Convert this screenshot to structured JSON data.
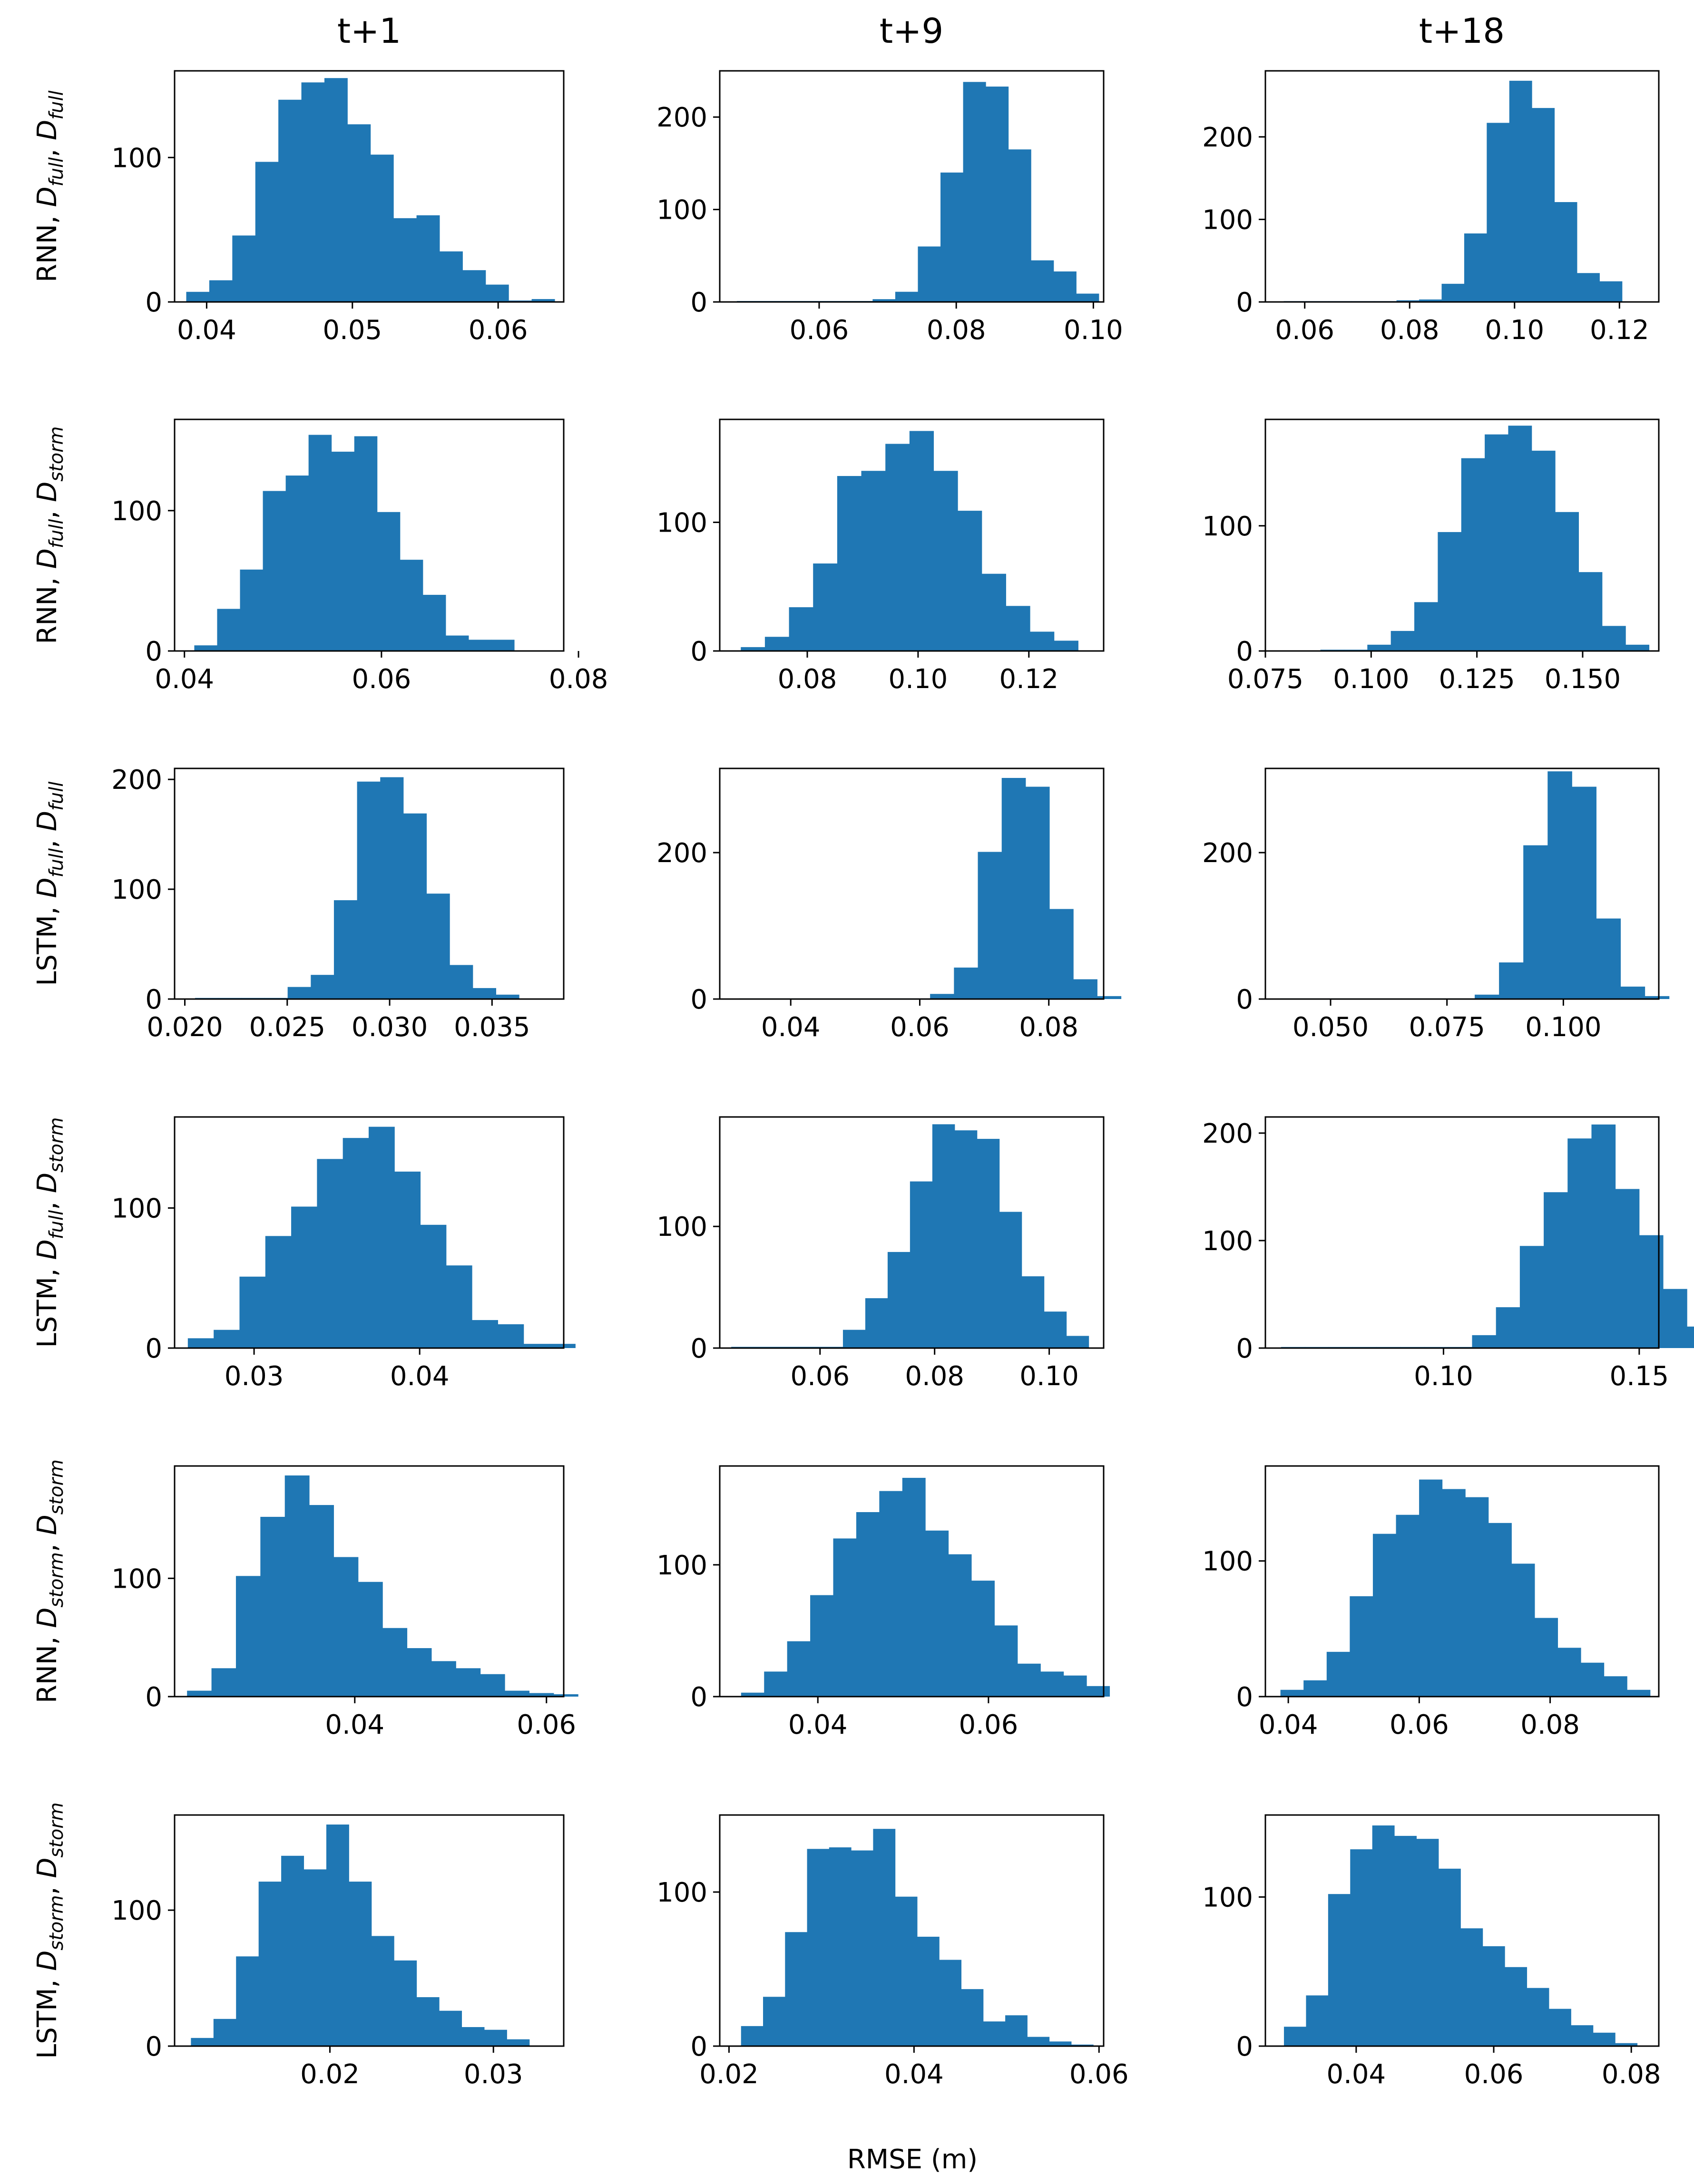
{
  "figure": {
    "column_titles": [
      "t+1",
      "t+9",
      "t+18"
    ],
    "row_labels": [
      {
        "model": "RNN",
        "sep": ", ",
        "d1": "full",
        "d2": "full"
      },
      {
        "model": "RNN",
        "sep": ", ",
        "d1": "full",
        "d2": "storm"
      },
      {
        "model": "LSTM",
        "sep": ", ",
        "d1": "full",
        "d2": "full"
      },
      {
        "model": "LSTM",
        "sep": ", ",
        "d1": "full",
        "d2": "storm"
      },
      {
        "model": "RNN",
        "sep": ", ",
        "d1": "storm",
        "d2": "storm"
      },
      {
        "model": "LSTM",
        "sep": ", ",
        "d1": "storm",
        "d2": "storm"
      }
    ],
    "italic_D": "D",
    "x_label": "RMSE (m)",
    "bar_color": "#1f77b4"
  },
  "chart_data": [
    {
      "type": "bar",
      "title": "t+1",
      "ylabel": "RNN, D_full, D_full",
      "xlim": [
        0.0378,
        0.0645
      ],
      "ylim": [
        0,
        160
      ],
      "bin_start": 0.0386,
      "bin_width": 0.00158,
      "values": [
        7,
        15,
        46,
        97,
        140,
        152,
        155,
        123,
        102,
        58,
        60,
        35,
        22,
        12,
        1,
        2
      ],
      "xticks": [
        0.04,
        0.05,
        0.06
      ],
      "xtick_labels": [
        "0.04",
        "0.05",
        "0.06"
      ],
      "yticks": [
        0,
        100
      ],
      "ytick_labels": [
        "0",
        "100"
      ]
    },
    {
      "type": "bar",
      "title": "t+9",
      "ylabel": "RNN, D_full, D_full",
      "xlim": [
        0.0455,
        0.1015
      ],
      "ylim": [
        0,
        250
      ],
      "bin_start": 0.048,
      "bin_width": 0.0033,
      "values": [
        1,
        1,
        1,
        1,
        1,
        1,
        3,
        11,
        60,
        140,
        238,
        233,
        165,
        45,
        33,
        9
      ],
      "xticks": [
        0.06,
        0.08,
        0.1
      ],
      "xtick_labels": [
        "0.06",
        "0.08",
        "0.10"
      ],
      "yticks": [
        0,
        100,
        200
      ],
      "ytick_labels": [
        "0",
        "100",
        "200"
      ]
    },
    {
      "type": "bar",
      "title": "t+18",
      "ylabel": "RNN, D_full, D_full",
      "xlim": [
        0.0525,
        0.1275
      ],
      "ylim": [
        0,
        280
      ],
      "bin_start": 0.056,
      "bin_width": 0.0043,
      "values": [
        1,
        1,
        1,
        1,
        1,
        2,
        3,
        22,
        83,
        217,
        268,
        235,
        121,
        35,
        25,
        0
      ],
      "xticks": [
        0.06,
        0.08,
        0.1,
        0.12
      ],
      "xtick_labels": [
        "0.06",
        "0.08",
        "0.10",
        "0.12"
      ],
      "yticks": [
        0,
        100,
        200
      ],
      "ytick_labels": [
        "0",
        "100",
        "200"
      ]
    },
    {
      "type": "bar",
      "title": "t+1",
      "ylabel": "RNN, D_full, D_storm",
      "xlim": [
        0.039,
        0.0785
      ],
      "ylim": [
        0,
        165
      ],
      "bin_start": 0.041,
      "bin_width": 0.00232,
      "values": [
        4,
        30,
        58,
        114,
        125,
        154,
        142,
        153,
        99,
        65,
        40,
        11,
        8,
        8
      ],
      "xticks": [
        0.04,
        0.06,
        0.08
      ],
      "xtick_labels": [
        "0.04",
        "0.06",
        "0.08"
      ],
      "yticks": [
        0,
        100
      ],
      "ytick_labels": [
        "0",
        "100"
      ]
    },
    {
      "type": "bar",
      "title": "t+9",
      "ylabel": "RNN, D_full, D_storm",
      "xlim": [
        0.0642,
        0.1335
      ],
      "ylim": [
        0,
        180
      ],
      "bin_start": 0.068,
      "bin_width": 0.00435,
      "values": [
        3,
        11,
        34,
        68,
        136,
        140,
        161,
        171,
        140,
        109,
        60,
        35,
        15,
        8
      ],
      "xticks": [
        0.08,
        0.1,
        0.12
      ],
      "xtick_labels": [
        "0.08",
        "0.10",
        "0.12"
      ],
      "yticks": [
        0,
        100
      ],
      "ytick_labels": [
        "0",
        "100"
      ]
    },
    {
      "type": "bar",
      "title": "t+18",
      "ylabel": "RNN, D_full, D_storm",
      "xlim": [
        0.075,
        0.168
      ],
      "ylim": [
        0,
        185
      ],
      "bin_start": 0.088,
      "bin_width": 0.00555,
      "values": [
        1,
        1,
        5,
        16,
        39,
        95,
        154,
        173,
        180,
        160,
        111,
        63,
        20,
        5
      ],
      "xticks": [
        0.075,
        0.1,
        0.125,
        0.15
      ],
      "xtick_labels": [
        "0.075",
        "0.100",
        "0.125",
        "0.150"
      ],
      "yticks": [
        0,
        100
      ],
      "ytick_labels": [
        "0",
        "100"
      ]
    },
    {
      "type": "bar",
      "title": "t+1",
      "ylabel": "LSTM, D_full, D_full",
      "xlim": [
        0.0195,
        0.0385
      ],
      "ylim": [
        0,
        210
      ],
      "bin_start": 0.0205,
      "bin_width": 0.00113,
      "values": [
        1,
        1,
        1,
        1,
        11,
        22,
        90,
        198,
        202,
        169,
        96,
        31,
        10,
        4
      ],
      "xticks": [
        0.02,
        0.025,
        0.03,
        0.035
      ],
      "xtick_labels": [
        "0.020",
        "0.025",
        "0.030",
        "0.035"
      ],
      "yticks": [
        0,
        100,
        200
      ],
      "ytick_labels": [
        "0",
        "100",
        "200"
      ]
    },
    {
      "type": "bar",
      "title": "t+9",
      "ylabel": "LSTM, D_full, D_full",
      "xlim": [
        0.029,
        0.0885
      ],
      "ylim": [
        0,
        315
      ],
      "bin_start": 0.032,
      "bin_width": 0.0037,
      "values": [
        1,
        1,
        1,
        1,
        1,
        1,
        1,
        1,
        7,
        43,
        201,
        302,
        290,
        123,
        27,
        4
      ],
      "xticks": [
        0.04,
        0.06,
        0.08
      ],
      "xtick_labels": [
        "0.04",
        "0.06",
        "0.08"
      ],
      "yticks": [
        0,
        200
      ],
      "ytick_labels": [
        "0",
        "200"
      ]
    },
    {
      "type": "bar",
      "title": "t+18",
      "ylabel": "LSTM, D_full, D_full",
      "xlim": [
        0.036,
        0.1205
      ],
      "ylim": [
        0,
        315
      ],
      "bin_start": 0.0392,
      "bin_width": 0.00522,
      "values": [
        1,
        1,
        1,
        1,
        1,
        1,
        1,
        1,
        6,
        50,
        210,
        311,
        290,
        110,
        17,
        4
      ],
      "xticks": [
        0.05,
        0.075,
        0.1
      ],
      "xtick_labels": [
        "0.050",
        "0.075",
        "0.100"
      ],
      "yticks": [
        0,
        200
      ],
      "ytick_labels": [
        "0",
        "200"
      ]
    },
    {
      "type": "bar",
      "title": "t+1",
      "ylabel": "LSTM, D_full, D_storm",
      "xlim": [
        0.0252,
        0.0487
      ],
      "ylim": [
        0,
        165
      ],
      "bin_start": 0.026,
      "bin_width": 0.00156,
      "values": [
        7,
        13,
        51,
        80,
        101,
        135,
        150,
        158,
        126,
        88,
        59,
        20,
        17,
        3,
        3
      ],
      "xticks": [
        0.03,
        0.04
      ],
      "xtick_labels": [
        "0.03",
        "0.04"
      ],
      "yticks": [
        0,
        100
      ],
      "ytick_labels": [
        "0",
        "100"
      ]
    },
    {
      "type": "bar",
      "title": "t+9",
      "ylabel": "LSTM, D_full, D_storm",
      "xlim": [
        0.0425,
        0.1095
      ],
      "ylim": [
        0,
        190
      ],
      "bin_start": 0.0445,
      "bin_width": 0.0039,
      "values": [
        1,
        1,
        1,
        1,
        1,
        15,
        41,
        79,
        137,
        184,
        179,
        172,
        112,
        59,
        30,
        10
      ],
      "xticks": [
        0.06,
        0.08,
        0.1
      ],
      "xtick_labels": [
        "0.06",
        "0.08",
        "0.10"
      ],
      "yticks": [
        0,
        100
      ],
      "ytick_labels": [
        "0",
        "100"
      ]
    },
    {
      "type": "bar",
      "title": "t+18",
      "ylabel": "LSTM, D_full, D_storm",
      "xlim": [
        0.0545,
        0.155
      ],
      "ylim": [
        0,
        215
      ],
      "bin_start": 0.0585,
      "bin_width": 0.0061,
      "values": [
        1,
        1,
        1,
        1,
        1,
        1,
        1,
        1,
        12,
        38,
        95,
        145,
        195,
        208,
        148,
        105,
        55,
        20,
        12
      ],
      "xticks": [
        0.1,
        0.15
      ],
      "xtick_labels": [
        "0.10",
        "0.15"
      ],
      "yticks": [
        0,
        100,
        200
      ],
      "ytick_labels": [
        "0",
        "100",
        "200"
      ]
    },
    {
      "type": "bar",
      "title": "t+1",
      "ylabel": "RNN, D_storm, D_storm",
      "xlim": [
        0.0212,
        0.0618
      ],
      "ylim": [
        0,
        195
      ],
      "bin_start": 0.0225,
      "bin_width": 0.00255,
      "values": [
        5,
        24,
        102,
        152,
        187,
        162,
        118,
        97,
        58,
        41,
        30,
        24,
        19,
        5,
        3,
        2
      ],
      "xticks": [
        0.04,
        0.06
      ],
      "xtick_labels": [
        "0.04",
        "0.06"
      ],
      "yticks": [
        0,
        100
      ],
      "ytick_labels": [
        "0",
        "100"
      ]
    },
    {
      "type": "bar",
      "title": "t+9",
      "ylabel": "RNN, D_storm, D_storm",
      "xlim": [
        0.0285,
        0.0735
      ],
      "ylim": [
        0,
        175
      ],
      "bin_start": 0.031,
      "bin_width": 0.0027,
      "values": [
        3,
        19,
        42,
        77,
        120,
        140,
        156,
        166,
        126,
        108,
        88,
        54,
        25,
        19,
        16,
        8
      ],
      "xticks": [
        0.04,
        0.06
      ],
      "xtick_labels": [
        "0.04",
        "0.06"
      ],
      "yticks": [
        0,
        100
      ],
      "ytick_labels": [
        "0",
        "100"
      ]
    },
    {
      "type": "bar",
      "title": "t+18",
      "ylabel": "RNN, D_storm, D_storm",
      "xlim": [
        0.0365,
        0.0966
      ],
      "ylim": [
        0,
        170
      ],
      "bin_start": 0.0388,
      "bin_width": 0.00353,
      "values": [
        5,
        12,
        33,
        74,
        120,
        134,
        160,
        153,
        147,
        128,
        98,
        58,
        36,
        25,
        15,
        5
      ],
      "xticks": [
        0.04,
        0.06,
        0.08
      ],
      "xtick_labels": [
        "0.04",
        "0.06",
        "0.08"
      ],
      "yticks": [
        0,
        100
      ],
      "ytick_labels": [
        "0",
        "100"
      ]
    },
    {
      "type": "bar",
      "title": "t+1",
      "ylabel": "LSTM, D_storm, D_storm",
      "xlim": [
        0.0105,
        0.0343
      ],
      "ylim": [
        0,
        170
      ],
      "bin_start": 0.0115,
      "bin_width": 0.00138,
      "values": [
        6,
        20,
        66,
        121,
        140,
        130,
        163,
        121,
        81,
        63,
        36,
        26,
        14,
        12,
        5
      ],
      "xticks": [
        0.02,
        0.03
      ],
      "xtick_labels": [
        "0.02",
        "0.03"
      ],
      "yticks": [
        0,
        100
      ],
      "ytick_labels": [
        "0",
        "100"
      ]
    },
    {
      "type": "bar",
      "title": "t+9",
      "ylabel": "LSTM, D_storm, D_storm",
      "xlim": [
        0.019,
        0.0605
      ],
      "ylim": [
        0,
        150
      ],
      "bin_start": 0.0213,
      "bin_width": 0.00238,
      "values": [
        13,
        32,
        74,
        128,
        129,
        127,
        141,
        97,
        71,
        56,
        37,
        16,
        20,
        6,
        3,
        1
      ],
      "xticks": [
        0.02,
        0.04,
        0.06
      ],
      "xtick_labels": [
        "0.02",
        "0.04",
        "0.06"
      ],
      "yticks": [
        0,
        100
      ],
      "ytick_labels": [
        "0",
        "100"
      ]
    },
    {
      "type": "bar",
      "title": "t+18",
      "ylabel": "LSTM, D_storm, D_storm",
      "xlim": [
        0.0268,
        0.084
      ],
      "ylim": [
        0,
        155
      ],
      "bin_start": 0.0295,
      "bin_width": 0.00321,
      "values": [
        13,
        34,
        102,
        132,
        148,
        141,
        139,
        119,
        79,
        67,
        53,
        39,
        25,
        14,
        9,
        2
      ],
      "xticks": [
        0.04,
        0.06,
        0.08
      ],
      "xtick_labels": [
        "0.04",
        "0.06",
        "0.08"
      ],
      "yticks": [
        0,
        100
      ],
      "ytick_labels": [
        "0",
        "100"
      ]
    }
  ]
}
